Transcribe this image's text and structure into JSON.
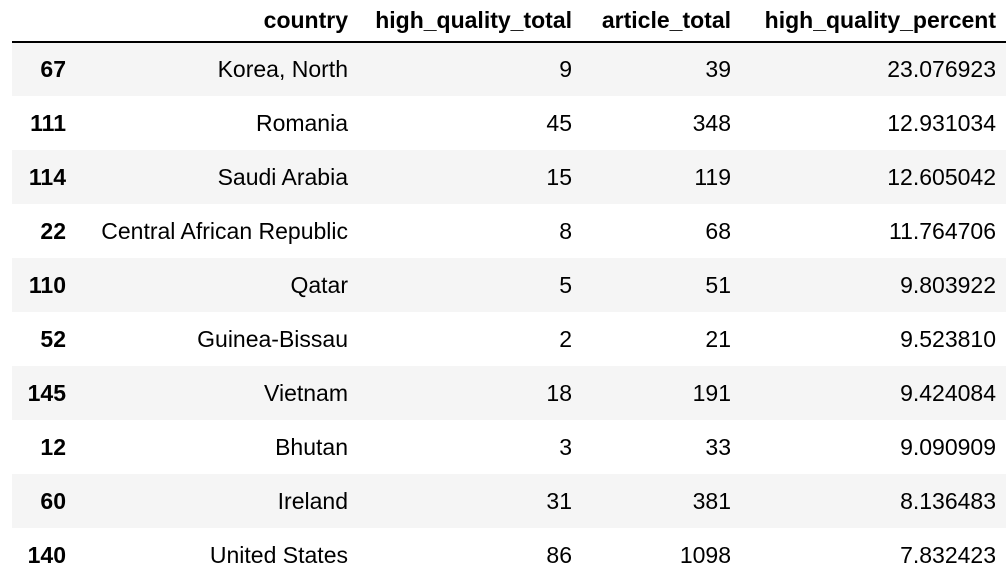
{
  "table": {
    "columns": [
      "",
      "country",
      "high_quality_total",
      "article_total",
      "high_quality_percent"
    ],
    "rows": [
      {
        "index": "67",
        "country": "Korea, North",
        "high_quality_total": "9",
        "article_total": "39",
        "high_quality_percent": "23.076923"
      },
      {
        "index": "111",
        "country": "Romania",
        "high_quality_total": "45",
        "article_total": "348",
        "high_quality_percent": "12.931034"
      },
      {
        "index": "114",
        "country": "Saudi Arabia",
        "high_quality_total": "15",
        "article_total": "119",
        "high_quality_percent": "12.605042"
      },
      {
        "index": "22",
        "country": "Central African Republic",
        "high_quality_total": "8",
        "article_total": "68",
        "high_quality_percent": "11.764706"
      },
      {
        "index": "110",
        "country": "Qatar",
        "high_quality_total": "5",
        "article_total": "51",
        "high_quality_percent": "9.803922"
      },
      {
        "index": "52",
        "country": "Guinea-Bissau",
        "high_quality_total": "2",
        "article_total": "21",
        "high_quality_percent": "9.523810"
      },
      {
        "index": "145",
        "country": "Vietnam",
        "high_quality_total": "18",
        "article_total": "191",
        "high_quality_percent": "9.424084"
      },
      {
        "index": "12",
        "country": "Bhutan",
        "high_quality_total": "3",
        "article_total": "33",
        "high_quality_percent": "9.090909"
      },
      {
        "index": "60",
        "country": "Ireland",
        "high_quality_total": "31",
        "article_total": "381",
        "high_quality_percent": "8.136483"
      },
      {
        "index": "140",
        "country": "United States",
        "high_quality_total": "86",
        "article_total": "1098",
        "high_quality_percent": "7.832423"
      }
    ]
  },
  "colors": {
    "stripe": "#f5f5f5",
    "header_rule": "#000000",
    "text": "#000000"
  }
}
